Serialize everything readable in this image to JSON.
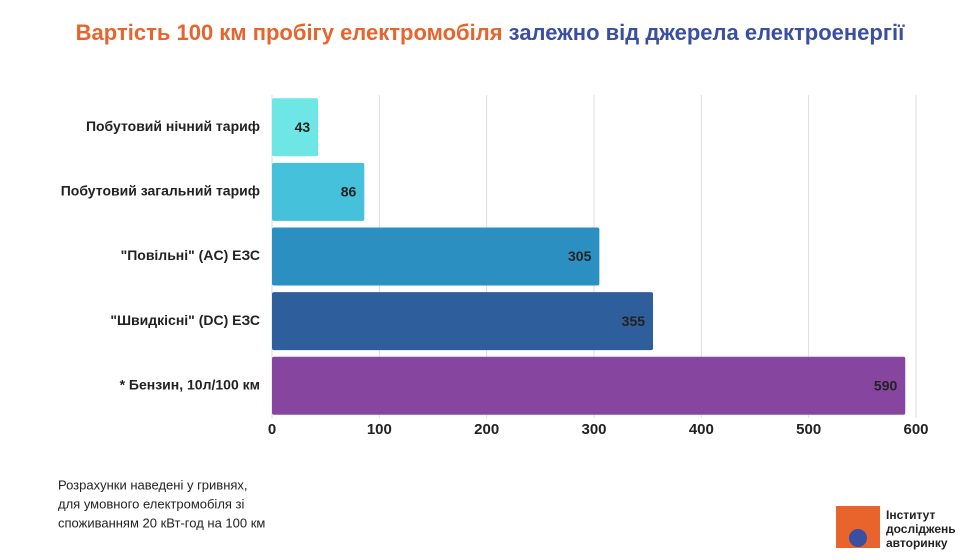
{
  "chart_data": {
    "type": "hbar",
    "title_parts": [
      "Вартість 100 км пробігу електромобіля",
      "залежно від джерела електроенергії"
    ],
    "title_colors": [
      "#e8642c",
      "#3a4fa0"
    ],
    "categories": [
      "Побутовий нічний тариф",
      "Побутовий загальний тариф",
      "\"Повільні\" (AC) ЕЗС",
      "\"Швидкісні\" (DC) ЕЗС",
      "* Бензин, 10л/100 км"
    ],
    "values": [
      43,
      86,
      305,
      355,
      590
    ],
    "colors": [
      "#6fe6e6",
      "#46c1dc",
      "#2b8fc1",
      "#2f5e9c",
      "#8646a0"
    ],
    "label_colors": [
      "#222222",
      "#222222",
      "#ffffff",
      "#ffffff",
      "#ffffff"
    ],
    "xlim": [
      0,
      600
    ],
    "xticks": [
      0,
      100,
      200,
      300,
      400,
      500,
      600
    ],
    "grid": true,
    "note": [
      "Розрахунки наведені у гривнях,",
      "для умовного електромобіля зі",
      "споживанням 20 кВт-год на 100 км"
    ],
    "logo": [
      "Інститут",
      "досліджень",
      "авторинку"
    ]
  }
}
